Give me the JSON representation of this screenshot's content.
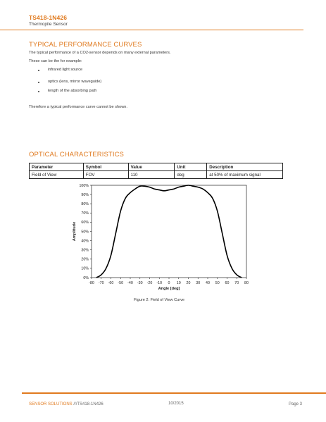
{
  "header": {
    "product_code": "TS418-1N426",
    "product_name": "Thermopile Sensor"
  },
  "section_performance": {
    "title": "TYPICAL PERFORMANCE CURVES",
    "intro": "The typical performance of a CO2-sensor depends on many external parameters.",
    "lead": "These can be the for example:",
    "bullets": [
      "infrared light source",
      "optics (lens, mirror waveguide)",
      "length of the absorbing path"
    ],
    "conclusion": "Therefore a typical performance curve cannot be shown."
  },
  "section_optical": {
    "title": "OPTICAL CHARACTERISTICS",
    "table": {
      "headers": [
        "Parameter",
        "Symbol",
        "Value",
        "Unit",
        "Description"
      ],
      "rows": [
        [
          "Field of View",
          "FOV",
          "110",
          "deg",
          "at 50% of maximum signal"
        ]
      ]
    }
  },
  "chart_data": {
    "type": "line",
    "title": "",
    "xlabel": "Angle [deg]",
    "ylabel": "Amplitude",
    "xlim": [
      -80,
      80
    ],
    "ylim": [
      0,
      100
    ],
    "x_ticks": [
      "-80",
      "-70",
      "-60",
      "-50",
      "-40",
      "-30",
      "-20",
      "-10",
      "0",
      "10",
      "20",
      "30",
      "40",
      "50",
      "60",
      "70",
      "80"
    ],
    "y_ticks": [
      "0%",
      "10%",
      "20%",
      "30%",
      "40%",
      "50%",
      "60%",
      "70%",
      "80%",
      "90%",
      "100%"
    ],
    "grid": false,
    "series": [
      {
        "x": [
          -75,
          -70,
          -65,
          -60,
          -55,
          -50,
          -45,
          -40,
          -35,
          -30,
          -25,
          -20,
          -15,
          -10,
          -5,
          0,
          5,
          10,
          15,
          20,
          25,
          30,
          35,
          40,
          45,
          50,
          55,
          60,
          65,
          70,
          75
        ],
        "y": [
          0,
          3,
          10,
          24,
          48,
          72,
          86,
          92,
          96,
          99,
          99,
          98,
          96,
          95,
          94,
          95,
          96,
          98,
          99,
          100,
          99,
          98,
          96,
          92,
          86,
          72,
          48,
          24,
          10,
          3,
          0
        ]
      }
    ],
    "caption": "Figure 2: Field of View Curve"
  },
  "footer": {
    "company": "SENSOR SOLUTIONS",
    "product_ref": " ///TS418-1N426",
    "date": "10/2015",
    "page": "Page 3"
  }
}
